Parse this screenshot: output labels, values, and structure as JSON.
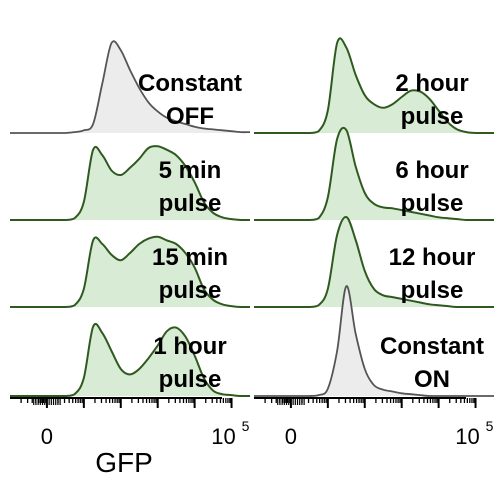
{
  "chart_data": {
    "type": "area",
    "xlabel": "GFP",
    "x_tick_labels": [
      {
        "base": "0",
        "exp": ""
      },
      {
        "base": "10",
        "exp": "5"
      }
    ],
    "colors": {
      "pulse_line": "#2f5a1f",
      "pulse_fill": "#d8ebd5",
      "constant_line": "#555555",
      "constant_fill": "#ececec"
    },
    "x_grid": [
      -1,
      -0.75,
      -0.5,
      -0.25,
      0,
      0.25,
      0.5,
      0.75,
      1,
      1.25,
      1.5,
      1.75,
      2,
      2.25,
      2.5,
      2.75,
      3,
      3.25,
      3.5,
      3.75,
      4,
      4.25,
      4.5,
      4.75,
      5,
      5.25,
      5.5
    ],
    "panels": [
      {
        "column": 0,
        "row": 0,
        "label": [
          "Constant",
          "OFF"
        ],
        "style": "constant",
        "series": [
          {
            "y": [
              0,
              0,
              0,
              0,
              0,
              0,
              0,
              0.01,
              0.03,
              0.1,
              0.55,
              1,
              0.92,
              0.7,
              0.5,
              0.34,
              0.24,
              0.17,
              0.13,
              0.1,
              0.07,
              0.05,
              0.04,
              0.03,
              0.02,
              0.01,
              0.01
            ]
          }
        ]
      },
      {
        "column": 0,
        "row": 1,
        "label": [
          "5 min",
          "pulse"
        ],
        "style": "pulse",
        "series": [
          {
            "y": [
              0,
              0,
              0,
              0,
              0,
              0,
              0,
              0.02,
              0.2,
              0.78,
              0.72,
              0.55,
              0.5,
              0.58,
              0.68,
              0.8,
              0.82,
              0.78,
              0.72,
              0.6,
              0.42,
              0.2,
              0.08,
              0.03,
              0.01,
              0,
              0
            ]
          }
        ]
      },
      {
        "column": 0,
        "row": 2,
        "label": [
          "15 min",
          "pulse"
        ],
        "style": "pulse",
        "series": [
          {
            "y": [
              0,
              0,
              0,
              0,
              0,
              0,
              0,
              0.02,
              0.2,
              0.74,
              0.7,
              0.58,
              0.52,
              0.6,
              0.7,
              0.76,
              0.78,
              0.74,
              0.7,
              0.6,
              0.44,
              0.2,
              0.08,
              0.03,
              0.01,
              0,
              0
            ]
          }
        ]
      },
      {
        "column": 0,
        "row": 3,
        "label": [
          "1 hour",
          "pulse"
        ],
        "style": "pulse",
        "series": [
          {
            "y": [
              0,
              0,
              0,
              0,
              0,
              0,
              0,
              0.02,
              0.2,
              0.77,
              0.7,
              0.5,
              0.3,
              0.24,
              0.3,
              0.42,
              0.56,
              0.72,
              0.76,
              0.66,
              0.45,
              0.2,
              0.06,
              0.02,
              0.01,
              0,
              0
            ]
          }
        ]
      },
      {
        "column": 1,
        "row": 0,
        "label": [
          "2 hour",
          "pulse"
        ],
        "style": "pulse",
        "series": [
          {
            "y": [
              0,
              0,
              0,
              0,
              0,
              0,
              0,
              0.02,
              0.25,
              1,
              0.95,
              0.65,
              0.42,
              0.32,
              0.28,
              0.32,
              0.4,
              0.47,
              0.46,
              0.38,
              0.25,
              0.12,
              0.04,
              0.01,
              0,
              0,
              0
            ]
          }
        ]
      },
      {
        "column": 1,
        "row": 1,
        "label": [
          "6 hour",
          "pulse"
        ],
        "style": "pulse",
        "series": [
          {
            "y": [
              0,
              0,
              0,
              0,
              0,
              0,
              0,
              0.02,
              0.25,
              0.9,
              1,
              0.6,
              0.3,
              0.18,
              0.14,
              0.13,
              0.11,
              0.09,
              0.07,
              0.05,
              0.03,
              0.02,
              0.01,
              0,
              0,
              0,
              0
            ]
          }
        ]
      },
      {
        "column": 1,
        "row": 2,
        "label": [
          "12 hour",
          "pulse"
        ],
        "style": "pulse",
        "series": [
          {
            "y": [
              0,
              0,
              0,
              0,
              0,
              0,
              0,
              0.02,
              0.2,
              0.8,
              1,
              0.75,
              0.4,
              0.2,
              0.13,
              0.11,
              0.09,
              0.07,
              0.05,
              0.03,
              0.02,
              0.01,
              0,
              0,
              0,
              0,
              0
            ]
          }
        ]
      },
      {
        "column": 1,
        "row": 3,
        "label": [
          "Constant",
          "ON"
        ],
        "style": "constant",
        "series": [
          {
            "y": [
              0,
              0,
              0,
              0,
              0,
              0,
              0,
              0.01,
              0.08,
              0.5,
              1.22,
              0.7,
              0.3,
              0.12,
              0.07,
              0.05,
              0.03,
              0.02,
              0.01,
              0,
              0,
              0,
              0,
              0,
              0,
              0,
              0
            ]
          }
        ]
      }
    ]
  }
}
